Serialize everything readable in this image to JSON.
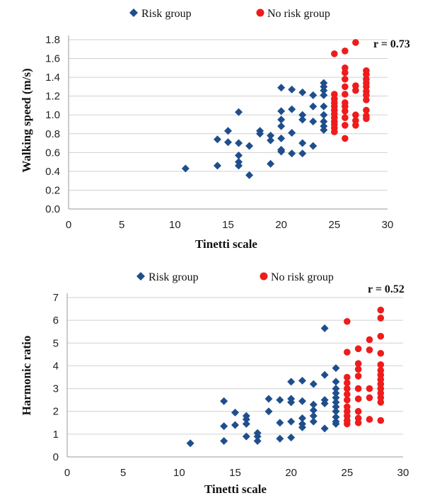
{
  "chart_data": [
    {
      "type": "scatter",
      "xlabel": "Tinetti scale",
      "ylabel": "Walking speed (m/s)",
      "xlim": [
        0,
        30
      ],
      "ylim": [
        0.0,
        1.8
      ],
      "x_ticks": [
        "0",
        "5",
        "10",
        "15",
        "20",
        "25",
        "30"
      ],
      "y_ticks": [
        "0.0",
        "0.2",
        "0.4",
        "0.6",
        "0.8",
        "1.0",
        "1.2",
        "1.4",
        "1.6",
        "1.8"
      ],
      "grid": "horizontal",
      "legend": "top",
      "annotation": "r = 0.73",
      "series": [
        {
          "name": "Risk group",
          "marker": "diamond",
          "color": "#1f4e8c",
          "points": [
            [
              11,
              0.43
            ],
            [
              14,
              0.46
            ],
            [
              14,
              0.74
            ],
            [
              15,
              0.83
            ],
            [
              15,
              0.71
            ],
            [
              16,
              1.03
            ],
            [
              16,
              0.7
            ],
            [
              16,
              0.57
            ],
            [
              16,
              0.5
            ],
            [
              16,
              0.46
            ],
            [
              17,
              0.67
            ],
            [
              17,
              0.36
            ],
            [
              18,
              0.83
            ],
            [
              18,
              0.8
            ],
            [
              19,
              0.78
            ],
            [
              19,
              0.73
            ],
            [
              19,
              0.48
            ],
            [
              20,
              1.29
            ],
            [
              20,
              1.04
            ],
            [
              20,
              0.95
            ],
            [
              20,
              0.88
            ],
            [
              20,
              0.75
            ],
            [
              20,
              0.63
            ],
            [
              20,
              0.61
            ],
            [
              21,
              1.27
            ],
            [
              21,
              1.06
            ],
            [
              21,
              0.81
            ],
            [
              21,
              0.59
            ],
            [
              22,
              1.24
            ],
            [
              22,
              1.0
            ],
            [
              22,
              0.95
            ],
            [
              22,
              0.7
            ],
            [
              22,
              0.59
            ],
            [
              23,
              1.21
            ],
            [
              23,
              1.09
            ],
            [
              23,
              0.93
            ],
            [
              23,
              0.67
            ],
            [
              24,
              1.34
            ],
            [
              24,
              1.3
            ],
            [
              24,
              1.26
            ],
            [
              24,
              1.21
            ],
            [
              24,
              1.09
            ],
            [
              24,
              1.0
            ],
            [
              24,
              0.93
            ],
            [
              24,
              0.88
            ],
            [
              24,
              0.84
            ]
          ]
        },
        {
          "name": "No risk group",
          "marker": "circle",
          "color": "#ee1c1c",
          "points": [
            [
              25,
              1.65
            ],
            [
              25,
              1.22
            ],
            [
              25,
              1.17
            ],
            [
              25,
              1.13
            ],
            [
              25,
              1.09
            ],
            [
              25,
              1.05
            ],
            [
              25,
              1.01
            ],
            [
              25,
              0.97
            ],
            [
              25,
              0.93
            ],
            [
              25,
              0.9
            ],
            [
              25,
              0.86
            ],
            [
              25,
              0.82
            ],
            [
              26,
              1.68
            ],
            [
              26,
              1.5
            ],
            [
              26,
              1.45
            ],
            [
              26,
              1.38
            ],
            [
              26,
              1.3
            ],
            [
              26,
              1.22
            ],
            [
              26,
              1.13
            ],
            [
              26,
              1.09
            ],
            [
              26,
              1.04
            ],
            [
              26,
              0.97
            ],
            [
              26,
              0.89
            ],
            [
              26,
              0.75
            ],
            [
              27,
              1.77
            ],
            [
              27,
              1.31
            ],
            [
              27,
              1.26
            ],
            [
              27,
              1.0
            ],
            [
              27,
              0.94
            ],
            [
              27,
              0.89
            ],
            [
              28,
              1.47
            ],
            [
              28,
              1.43
            ],
            [
              28,
              1.38
            ],
            [
              28,
              1.34
            ],
            [
              28,
              1.3
            ],
            [
              28,
              1.25
            ],
            [
              28,
              1.21
            ],
            [
              28,
              1.16
            ],
            [
              28,
              1.05
            ],
            [
              28,
              0.99
            ],
            [
              28,
              0.96
            ]
          ]
        }
      ]
    },
    {
      "type": "scatter",
      "xlabel": "Tinetti scale",
      "ylabel": "Harmonic ratio",
      "xlim": [
        0,
        30
      ],
      "ylim": [
        0,
        7
      ],
      "x_ticks": [
        "0",
        "5",
        "10",
        "15",
        "20",
        "25",
        "30"
      ],
      "y_ticks": [
        "0",
        "1",
        "2",
        "3",
        "4",
        "5",
        "6",
        "7"
      ],
      "grid": "horizontal",
      "legend": "top",
      "annotation": "r = 0.52",
      "series": [
        {
          "name": "Risk group",
          "marker": "diamond",
          "color": "#1f4e8c",
          "points": [
            [
              11,
              0.6
            ],
            [
              14,
              2.45
            ],
            [
              14,
              1.35
            ],
            [
              14,
              0.7
            ],
            [
              15,
              1.95
            ],
            [
              15,
              1.4
            ],
            [
              16,
              1.8
            ],
            [
              16,
              1.65
            ],
            [
              16,
              1.45
            ],
            [
              16,
              0.9
            ],
            [
              17,
              1.05
            ],
            [
              17,
              0.9
            ],
            [
              17,
              0.7
            ],
            [
              18,
              2.55
            ],
            [
              18,
              2.0
            ],
            [
              19,
              2.5
            ],
            [
              19,
              1.5
            ],
            [
              19,
              0.8
            ],
            [
              20,
              3.3
            ],
            [
              20,
              2.55
            ],
            [
              20,
              2.4
            ],
            [
              20,
              1.55
            ],
            [
              20,
              0.85
            ],
            [
              21,
              3.35
            ],
            [
              21,
              2.45
            ],
            [
              21,
              1.7
            ],
            [
              21,
              1.45
            ],
            [
              21,
              1.3
            ],
            [
              22,
              3.2
            ],
            [
              22,
              2.3
            ],
            [
              22,
              2.05
            ],
            [
              22,
              1.8
            ],
            [
              22,
              1.55
            ],
            [
              23,
              5.65
            ],
            [
              23,
              3.6
            ],
            [
              23,
              2.5
            ],
            [
              23,
              2.35
            ],
            [
              23,
              1.25
            ],
            [
              24,
              3.9
            ],
            [
              24,
              3.3
            ],
            [
              24,
              3.0
            ],
            [
              24,
              2.8
            ],
            [
              24,
              2.6
            ],
            [
              24,
              2.4
            ],
            [
              24,
              2.2
            ],
            [
              24,
              2.0
            ],
            [
              24,
              1.75
            ],
            [
              24,
              1.55
            ],
            [
              24,
              1.45
            ]
          ]
        },
        {
          "name": "No risk group",
          "marker": "circle",
          "color": "#ee1c1c",
          "points": [
            [
              25,
              5.95
            ],
            [
              25,
              4.6
            ],
            [
              25,
              3.5
            ],
            [
              25,
              3.25
            ],
            [
              25,
              3.0
            ],
            [
              25,
              2.75
            ],
            [
              25,
              2.5
            ],
            [
              25,
              2.2
            ],
            [
              25,
              2.0
            ],
            [
              25,
              1.8
            ],
            [
              25,
              1.6
            ],
            [
              25,
              1.45
            ],
            [
              26,
              4.75
            ],
            [
              26,
              4.1
            ],
            [
              26,
              3.85
            ],
            [
              26,
              3.55
            ],
            [
              26,
              3.0
            ],
            [
              26,
              2.55
            ],
            [
              26,
              2.0
            ],
            [
              26,
              1.7
            ],
            [
              26,
              1.5
            ],
            [
              27,
              5.15
            ],
            [
              27,
              4.7
            ],
            [
              27,
              3.0
            ],
            [
              27,
              2.6
            ],
            [
              27,
              1.65
            ],
            [
              28,
              6.45
            ],
            [
              28,
              6.1
            ],
            [
              28,
              5.3
            ],
            [
              28,
              4.55
            ],
            [
              28,
              4.05
            ],
            [
              28,
              3.8
            ],
            [
              28,
              3.6
            ],
            [
              28,
              3.4
            ],
            [
              28,
              3.2
            ],
            [
              28,
              3.0
            ],
            [
              28,
              2.8
            ],
            [
              28,
              2.6
            ],
            [
              28,
              2.4
            ],
            [
              28,
              1.6
            ]
          ]
        }
      ]
    }
  ]
}
